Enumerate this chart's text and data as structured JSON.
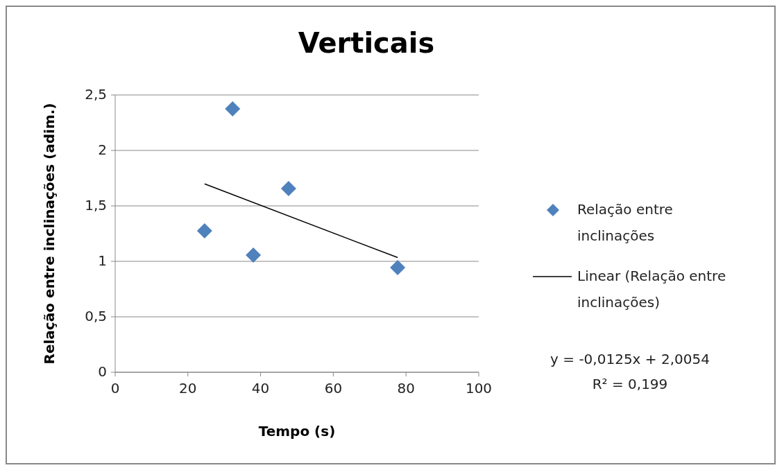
{
  "chart_data": {
    "type": "scatter",
    "title": "Verticais",
    "xlabel": "Tempo (s)",
    "ylabel": "Relação entre inclinações (adim.)",
    "xlim": [
      0,
      100
    ],
    "xticks": [
      0,
      20,
      40,
      60,
      80,
      100
    ],
    "ylim": [
      0,
      2.5
    ],
    "yticks": [
      0,
      {
        "value": 0.5,
        "label": "0,5"
      },
      1,
      {
        "value": 1.5,
        "label": "1,5"
      },
      2,
      {
        "value": 2.5,
        "label": "2,5"
      }
    ],
    "grid": "y",
    "legend": "right",
    "series": [
      {
        "name": "Relação entre inclinações",
        "color": "#4f81bd",
        "marker": "diamond",
        "x": [
          24.6,
          32.3,
          38.0,
          47.7,
          77.7
        ],
        "values": [
          1.275,
          2.375,
          1.056,
          1.656,
          0.944
        ]
      },
      {
        "type": "line",
        "name": "Linear (Relação entre inclinações)",
        "color": "#000000",
        "marker": "none",
        "x": [
          24.6,
          77.7
        ],
        "values": [
          1.698,
          1.034
        ]
      }
    ],
    "annotations": [
      "y = -0,0125x + 2,0054",
      "R² = 0,199"
    ]
  }
}
